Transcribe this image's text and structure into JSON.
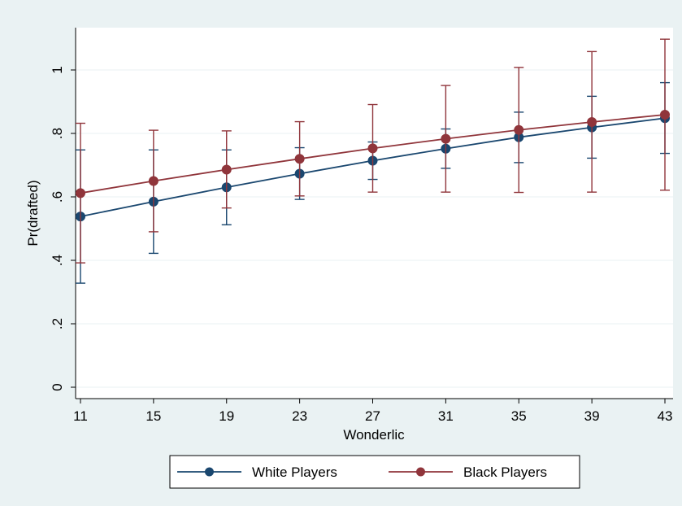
{
  "chart_data": {
    "type": "line",
    "title": "",
    "xlabel": "Wonderlic",
    "ylabel": "Pr(drafted)",
    "x": [
      11,
      15,
      19,
      23,
      27,
      31,
      35,
      39,
      43
    ],
    "xticks": [
      "11",
      "15",
      "19",
      "23",
      "27",
      "31",
      "35",
      "39",
      "43"
    ],
    "ylim": [
      0,
      1.1
    ],
    "yticks": [
      {
        "value": 0,
        "label": "0"
      },
      {
        "value": 0.2,
        "label": ".2"
      },
      {
        "value": 0.4,
        "label": ".4"
      },
      {
        "value": 0.6,
        "label": ".6"
      },
      {
        "value": 0.8,
        "label": ".8"
      },
      {
        "value": 1,
        "label": "1"
      }
    ],
    "grid": true,
    "legend_position": "bottom",
    "series": [
      {
        "name": "White Players",
        "color": "#1a476f",
        "values": [
          0.538,
          0.585,
          0.63,
          0.673,
          0.714,
          0.752,
          0.788,
          0.819,
          0.848
        ],
        "ci_low": [
          0.328,
          0.422,
          0.512,
          0.592,
          0.655,
          0.69,
          0.708,
          0.722,
          0.737
        ],
        "ci_high": [
          0.748,
          0.748,
          0.748,
          0.755,
          0.773,
          0.814,
          0.867,
          0.917,
          0.96
        ]
      },
      {
        "name": "Black Players",
        "color": "#90353b",
        "values": [
          0.612,
          0.65,
          0.686,
          0.72,
          0.753,
          0.783,
          0.811,
          0.836,
          0.859
        ],
        "ci_low": [
          0.392,
          0.49,
          0.565,
          0.603,
          0.615,
          0.615,
          0.614,
          0.615,
          0.621
        ],
        "ci_high": [
          0.832,
          0.81,
          0.808,
          0.837,
          0.891,
          0.951,
          1.008,
          1.058,
          1.097
        ]
      }
    ]
  }
}
